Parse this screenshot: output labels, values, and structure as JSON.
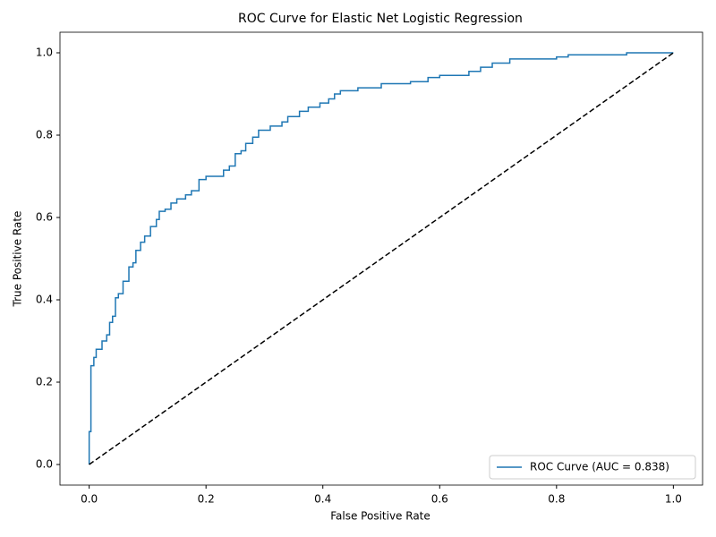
{
  "chart_data": {
    "type": "line",
    "title": "ROC Curve for Elastic Net Logistic Regression",
    "x_label": "False Positive Rate",
    "y_label": "True Positive Rate",
    "xlim": [
      -0.05,
      1.05
    ],
    "ylim": [
      -0.05,
      1.05
    ],
    "xticks": [
      {
        "value": 0,
        "label": "0.0"
      },
      0.2,
      0.4,
      0.6,
      0.8,
      {
        "value": 1,
        "label": "1.0"
      }
    ],
    "yticks": [
      {
        "value": 0,
        "label": "0.0"
      },
      0.2,
      0.4,
      0.6,
      0.8,
      {
        "value": 1,
        "label": "1.0"
      }
    ],
    "legend": "lower right",
    "grid": false,
    "series": [
      {
        "name": "ROC Curve (AUC = 0.838)",
        "color": "#1f77b4",
        "x": [
          0,
          0,
          0.003,
          0.003,
          0.008,
          0.008,
          0.012,
          0.012,
          0.022,
          0.022,
          0.03,
          0.03,
          0.035,
          0.035,
          0.04,
          0.04,
          0.045,
          0.045,
          0.05,
          0.05,
          0.058,
          0.058,
          0.068,
          0.068,
          0.075,
          0.075,
          0.08,
          0.08,
          0.088,
          0.088,
          0.095,
          0.095,
          0.105,
          0.105,
          0.115,
          0.115,
          0.12,
          0.12,
          0.13,
          0.13,
          0.14,
          0.14,
          0.15,
          0.15,
          0.165,
          0.165,
          0.175,
          0.175,
          0.188,
          0.188,
          0.2,
          0.2,
          0.23,
          0.23,
          0.24,
          0.24,
          0.25,
          0.25,
          0.26,
          0.26,
          0.268,
          0.268,
          0.28,
          0.28,
          0.29,
          0.29,
          0.31,
          0.31,
          0.33,
          0.33,
          0.34,
          0.34,
          0.36,
          0.36,
          0.375,
          0.375,
          0.395,
          0.395,
          0.41,
          0.41,
          0.42,
          0.42,
          0.43,
          0.43,
          0.46,
          0.46,
          0.5,
          0.5,
          0.55,
          0.55,
          0.58,
          0.58,
          0.6,
          0.6,
          0.65,
          0.65,
          0.67,
          0.67,
          0.69,
          0.69,
          0.72,
          0.72,
          0.8,
          0.8,
          0.82,
          0.82,
          0.92,
          0.92,
          1.0
        ],
        "values": [
          0,
          0.08,
          0.08,
          0.24,
          0.24,
          0.26,
          0.26,
          0.28,
          0.28,
          0.3,
          0.3,
          0.315,
          0.315,
          0.345,
          0.345,
          0.36,
          0.36,
          0.405,
          0.405,
          0.415,
          0.415,
          0.445,
          0.445,
          0.48,
          0.48,
          0.49,
          0.49,
          0.52,
          0.52,
          0.54,
          0.54,
          0.555,
          0.555,
          0.578,
          0.578,
          0.595,
          0.595,
          0.615,
          0.615,
          0.62,
          0.62,
          0.635,
          0.635,
          0.645,
          0.645,
          0.655,
          0.655,
          0.665,
          0.665,
          0.692,
          0.692,
          0.7,
          0.7,
          0.715,
          0.715,
          0.725,
          0.725,
          0.755,
          0.755,
          0.762,
          0.762,
          0.78,
          0.78,
          0.795,
          0.795,
          0.812,
          0.812,
          0.822,
          0.822,
          0.832,
          0.832,
          0.845,
          0.845,
          0.858,
          0.858,
          0.868,
          0.868,
          0.878,
          0.878,
          0.888,
          0.888,
          0.9,
          0.9,
          0.908,
          0.908,
          0.915,
          0.915,
          0.925,
          0.925,
          0.93,
          0.93,
          0.94,
          0.94,
          0.945,
          0.945,
          0.955,
          0.955,
          0.965,
          0.965,
          0.975,
          0.975,
          0.985,
          0.985,
          0.99,
          0.99,
          0.995,
          0.995,
          1.0,
          1.0
        ]
      },
      {
        "color": "#000000",
        "dashed": true,
        "x": [
          0,
          1
        ],
        "values": [
          0,
          1
        ]
      }
    ]
  }
}
